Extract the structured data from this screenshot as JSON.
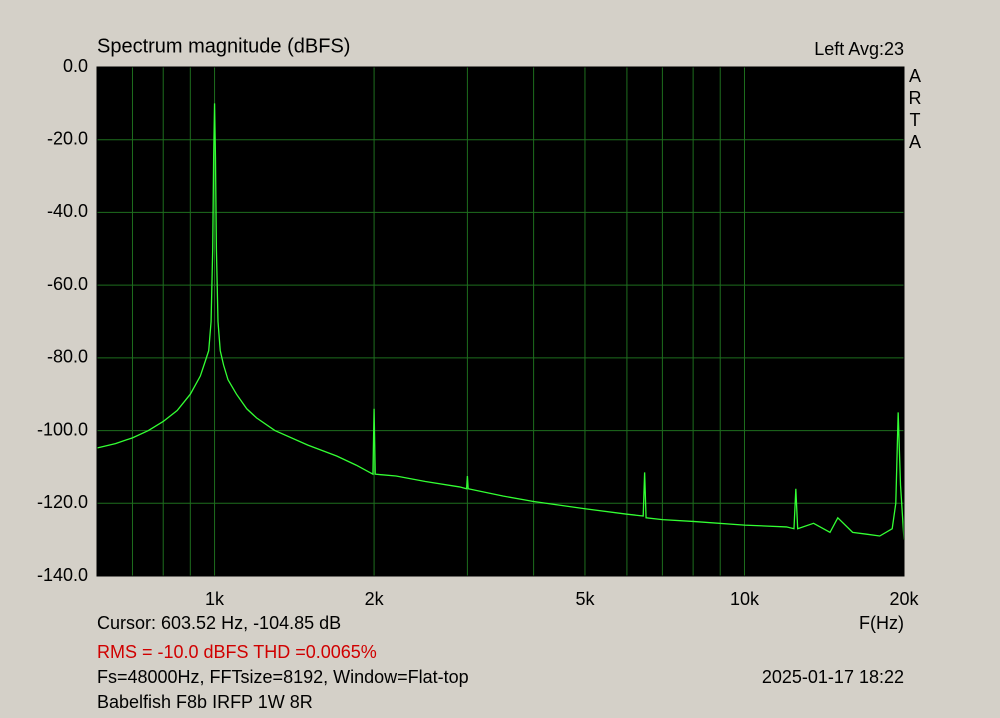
{
  "chart_data": {
    "type": "line",
    "title": "Spectrum magnitude (dBFS)",
    "channel_label": "Left  Avg:23",
    "side_label": [
      "A",
      "R",
      "T",
      "A"
    ],
    "x_label": "F(Hz)",
    "cursor_text": "Cursor: 603.52 Hz, -104.85 dB",
    "rms_text": "RMS =  -10.0 dBFS  THD =0.0065%",
    "settings_text": "Fs=48000Hz, FFTsize=8192, Window=Flat-top",
    "timestamp": "2025-01-17   18:22",
    "device_text": "Babelfish F8b IRFP 1W 8R",
    "xscale": "log",
    "grid": true,
    "xlim": [
      600,
      20000
    ],
    "ylim": [
      -140,
      0
    ],
    "xticks": [
      {
        "value": 1000,
        "label": "1k"
      },
      {
        "value": 2000,
        "label": "2k"
      },
      {
        "value": 5000,
        "label": "5k"
      },
      {
        "value": 10000,
        "label": "10k"
      },
      {
        "value": 20000,
        "label": "20k"
      }
    ],
    "xminor": [
      700,
      800,
      900,
      3000,
      4000,
      6000,
      7000,
      8000,
      9000
    ],
    "yticks": [
      {
        "value": 0,
        "label": "0.0"
      },
      {
        "value": -20,
        "label": "-20.0"
      },
      {
        "value": -40,
        "label": "-40.0"
      },
      {
        "value": -60,
        "label": "-60.0"
      },
      {
        "value": -80,
        "label": "-80.0"
      },
      {
        "value": -100,
        "label": "-100.0"
      },
      {
        "value": -120,
        "label": "-120.0"
      },
      {
        "value": -140,
        "label": "-140.0"
      }
    ],
    "x": [
      600,
      650,
      700,
      750,
      800,
      850,
      900,
      940,
      960,
      975,
      985,
      992,
      996,
      1000,
      1004,
      1008,
      1015,
      1025,
      1040,
      1060,
      1100,
      1150,
      1200,
      1300,
      1500,
      1700,
      1850,
      1990,
      2000,
      2010,
      2200,
      2500,
      2900,
      2990,
      3000,
      3010,
      3500,
      4000,
      5000,
      6000,
      6440,
      6480,
      6520,
      7000,
      8000,
      10000,
      12000,
      12400,
      12500,
      12600,
      13500,
      14500,
      15000,
      16000,
      17000,
      18000,
      19000,
      19300,
      19500,
      19700,
      20000
    ],
    "series": [
      {
        "color": "#33ff33",
        "values": [
          -104.8,
          -103.6,
          -102,
          -100,
          -97.5,
          -94.5,
          -90,
          -85,
          -81,
          -78,
          -70,
          -50,
          -25,
          -10,
          -25,
          -50,
          -70,
          -78,
          -82,
          -86,
          -90,
          -94,
          -96.5,
          -100,
          -104,
          -107,
          -109.5,
          -112,
          -94,
          -112,
          -112.5,
          -114,
          -115.5,
          -116,
          -112.5,
          -116,
          -118,
          -119.5,
          -121.5,
          -123,
          -123.5,
          -111.5,
          -124,
          -124.5,
          -125,
          -126,
          -126.5,
          -127,
          -116,
          -127,
          -125.5,
          -128,
          -124,
          -128,
          -128.5,
          -129,
          -127,
          -120,
          -95,
          -115,
          -130
        ]
      }
    ]
  }
}
